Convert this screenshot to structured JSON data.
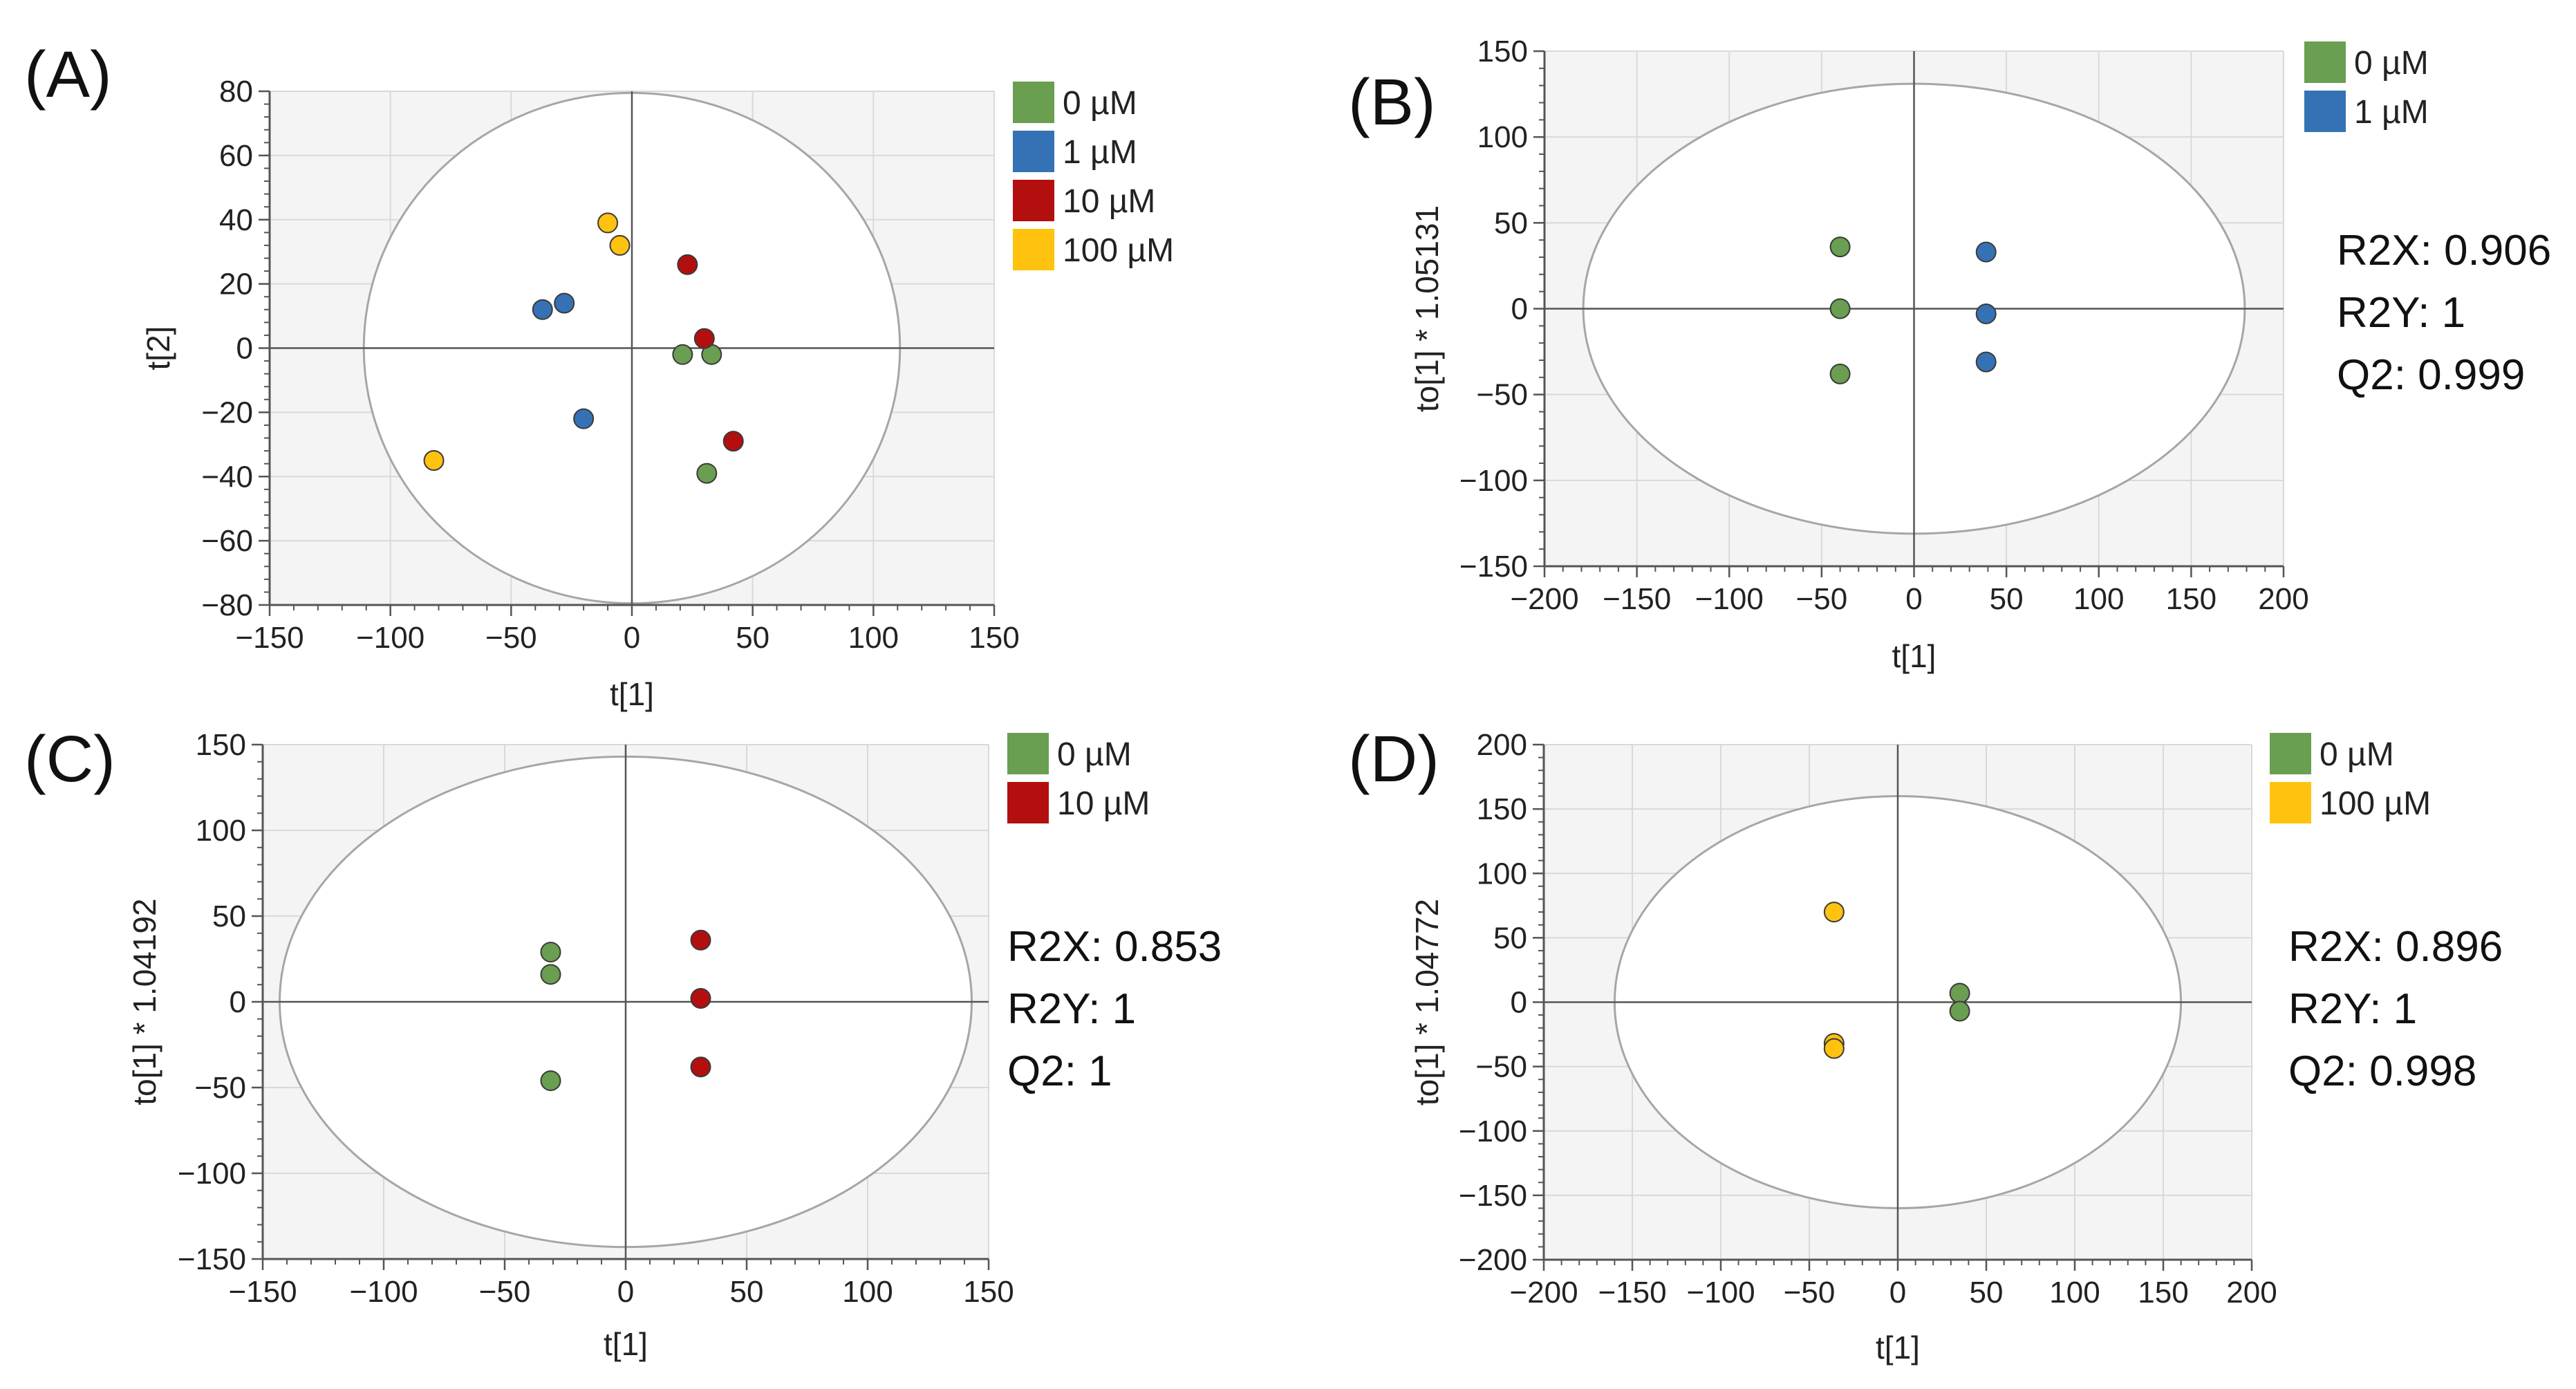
{
  "colors": {
    "zero_uM": "#6a9e50",
    "one_uM": "#3572b5",
    "ten_uM": "#b30f0f",
    "hundred_uM": "#ffc20e",
    "plot_bg": "#f4f4f4",
    "ellipse_fill": "#ffffff",
    "grid": "#d9d9d9",
    "axis": "#555555",
    "ellipse_stroke": "#a6a6a6"
  },
  "chart_data": [
    {
      "panel_label": "(A)",
      "type": "scatter",
      "xlabel": "t[1]",
      "ylabel": "t[2]",
      "xlim": [
        -150,
        150
      ],
      "ylim": [
        -80,
        80
      ],
      "xticks": [
        -150,
        -100,
        -50,
        0,
        50,
        100,
        150
      ],
      "yticks": [
        -80,
        -60,
        -40,
        -20,
        0,
        20,
        40,
        60,
        80
      ],
      "xtick_labels": [
        "−150",
        "−100",
        "−50",
        "0",
        "50",
        "100",
        "150"
      ],
      "ytick_labels": [
        "−80",
        "−60",
        "−40",
        "−20",
        "0",
        "20",
        "40",
        "60",
        "80"
      ],
      "ellipse": {
        "rx": 111,
        "ry": 79.5
      },
      "grid": true,
      "legend": [
        "0 µM",
        "1 µM",
        "10 µM",
        "100 µM"
      ],
      "stats": [],
      "series": [
        {
          "name": "0 µM",
          "color_key": "zero_uM",
          "points": [
            [
              21,
              -2
            ],
            [
              33,
              -2
            ],
            [
              31,
              -39
            ]
          ]
        },
        {
          "name": "1 µM",
          "color_key": "one_uM",
          "points": [
            [
              -37,
              12
            ],
            [
              -28,
              14
            ],
            [
              -20,
              -22
            ]
          ]
        },
        {
          "name": "10 µM",
          "color_key": "ten_uM",
          "points": [
            [
              23,
              26
            ],
            [
              30,
              3
            ],
            [
              42,
              -29
            ]
          ]
        },
        {
          "name": "100 µM",
          "color_key": "hundred_uM",
          "points": [
            [
              -10,
              39
            ],
            [
              -5,
              32
            ],
            [
              -82,
              -35
            ]
          ]
        }
      ]
    },
    {
      "panel_label": "(B)",
      "type": "scatter",
      "xlabel": "t[1]",
      "ylabel": "to[1] * 1.05131",
      "xlim": [
        -200,
        200
      ],
      "ylim": [
        -150,
        150
      ],
      "xticks": [
        -200,
        -150,
        -100,
        -50,
        0,
        50,
        100,
        150,
        200
      ],
      "yticks": [
        -150,
        -100,
        -50,
        0,
        50,
        100,
        150
      ],
      "xtick_labels": [
        "−200",
        "−150",
        "−100",
        "−50",
        "0",
        "50",
        "100",
        "150",
        "200"
      ],
      "ytick_labels": [
        "−150",
        "−100",
        "−50",
        "0",
        "50",
        "100",
        "150"
      ],
      "ellipse": {
        "rx": 179,
        "ry": 131
      },
      "grid": true,
      "legend": [
        "0 µM",
        "1 µM"
      ],
      "stats": [
        "R2X: 0.906",
        "R2Y: 1",
        "Q2: 0.999"
      ],
      "series": [
        {
          "name": "0 µM",
          "color_key": "zero_uM",
          "points": [
            [
              -40,
              36
            ],
            [
              -40,
              0
            ],
            [
              -40,
              -38
            ]
          ]
        },
        {
          "name": "1 µM",
          "color_key": "one_uM",
          "points": [
            [
              39,
              33
            ],
            [
              39,
              -3
            ],
            [
              39,
              -31
            ]
          ]
        }
      ]
    },
    {
      "panel_label": "(C)",
      "type": "scatter",
      "xlabel": "t[1]",
      "ylabel": "to[1] * 1.04192",
      "xlim": [
        -150,
        150
      ],
      "ylim": [
        -150,
        150
      ],
      "xticks": [
        -150,
        -100,
        -50,
        0,
        50,
        100,
        150
      ],
      "yticks": [
        -150,
        -100,
        -50,
        0,
        50,
        100,
        150
      ],
      "xtick_labels": [
        "−150",
        "−100",
        "−50",
        "0",
        "50",
        "100",
        "150"
      ],
      "ytick_labels": [
        "−150",
        "−100",
        "−50",
        "0",
        "50",
        "100",
        "150"
      ],
      "ellipse": {
        "rx": 143,
        "ry": 143
      },
      "grid": true,
      "legend": [
        "0 µM",
        "10 µM"
      ],
      "stats": [
        "R2X: 0.853",
        "R2Y: 1",
        "Q2: 1"
      ],
      "series": [
        {
          "name": "0 µM",
          "color_key": "zero_uM",
          "points": [
            [
              -31,
              29
            ],
            [
              -31,
              16
            ],
            [
              -31,
              -46
            ]
          ]
        },
        {
          "name": "10 µM",
          "color_key": "ten_uM",
          "points": [
            [
              31,
              36
            ],
            [
              31,
              2
            ],
            [
              31,
              -38
            ]
          ]
        }
      ]
    },
    {
      "panel_label": "(D)",
      "type": "scatter",
      "xlabel": "t[1]",
      "ylabel": "to[1] * 1.04772",
      "xlim": [
        -200,
        200
      ],
      "ylim": [
        -200,
        200
      ],
      "xticks": [
        -200,
        -150,
        -100,
        -50,
        0,
        50,
        100,
        150,
        200
      ],
      "yticks": [
        -200,
        -150,
        -100,
        -50,
        0,
        50,
        100,
        150,
        200
      ],
      "xtick_labels": [
        "−200",
        "−150",
        "−100",
        "−50",
        "0",
        "50",
        "100",
        "150",
        "200"
      ],
      "ytick_labels": [
        "−200",
        "−150",
        "−100",
        "−50",
        "0",
        "50",
        "100",
        "150",
        "200"
      ],
      "ellipse": {
        "rx": 160,
        "ry": 160
      },
      "grid": true,
      "legend": [
        "0 µM",
        "100 µM"
      ],
      "stats": [
        "R2X: 0.896",
        "R2Y: 1",
        "Q2: 0.998"
      ],
      "series": [
        {
          "name": "0 µM",
          "color_key": "zero_uM",
          "points": [
            [
              35,
              7
            ],
            [
              35,
              -7
            ]
          ]
        },
        {
          "name": "100 µM",
          "color_key": "hundred_uM",
          "points": [
            [
              -36,
              70
            ],
            [
              -36,
              -32
            ],
            [
              -36,
              -36
            ]
          ]
        }
      ]
    }
  ]
}
